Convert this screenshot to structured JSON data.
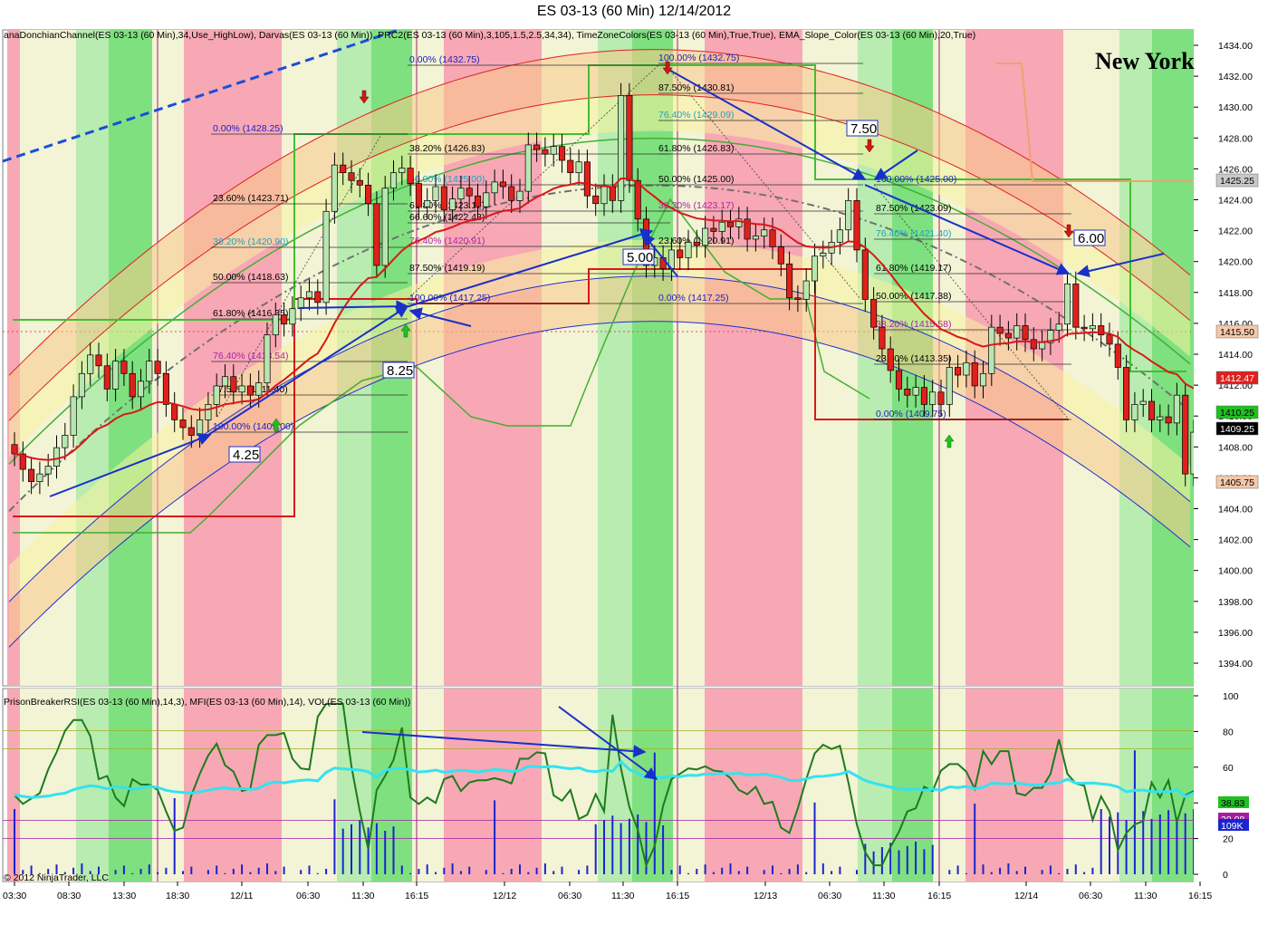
{
  "title": "ES 03-13 (60 Min)  12/14/2012",
  "location_label": "New York",
  "copyright": "© 2012 NinjaTrader, LLC",
  "price_indicators": "anaDonchianChannel(ES 03-13 (60 Min),34,Use_HighLow), Darvas(ES 03-13 (60 Min)), PRC2(ES 03-13 (60 Min),3,105,1.5,2.5,34,34), TimeZoneColors(ES 03-13 (60 Min),True,True), EMA_Slope_Color(ES 03-13 (60 Min),20,True)",
  "osc_indicators": "PrisonBreakerRSI(ES 03-13 (60 Min),14,3), MFI(ES 03-13 (60 Min),14), VOL(ES 03-13 (60 Min))",
  "colors": {
    "up": "#b8e6b0",
    "down": "#e0201c",
    "rsi": "#1e7a1e",
    "mfi": "#33e3f0",
    "vol": "#1a24d0",
    "arrow": "#1830c8",
    "ema": "#d81818",
    "zone_green": "#7fe07f",
    "zone_pink": "#f7a8b4",
    "zone_cream": "#f3f3d6"
  },
  "chart_data": {
    "type": "candlestick",
    "price_axis": {
      "range": [
        1392.5,
        1435.0
      ],
      "ticks": [
        "1434.00",
        "1432.00",
        "1430.00",
        "1428.00",
        "1426.00",
        "1424.00",
        "1422.00",
        "1420.00",
        "1418.00",
        "1416.00",
        "1414.00",
        "1412.00",
        "1410.00",
        "1408.00",
        "1406.00",
        "1404.00",
        "1402.00",
        "1400.00",
        "1398.00",
        "1396.00",
        "1394.00"
      ]
    },
    "time_axis": [
      "03:30",
      "08:30",
      "13:30",
      "18:30",
      "12/11",
      "06:30",
      "11:30",
      "16:15",
      "12/12",
      "06:30",
      "11:30",
      "16:15",
      "12/13",
      "06:30",
      "11:30",
      "16:15",
      "12/14",
      "06:30",
      "11:30",
      "16:15"
    ],
    "price_markers": [
      {
        "value": "1425.25",
        "kind": "gray"
      },
      {
        "value": "1415.50",
        "kind": "orange"
      },
      {
        "value": "1412.47",
        "kind": "red"
      },
      {
        "value": "1410.25",
        "kind": "green"
      },
      {
        "value": "1409.25",
        "kind": "black"
      },
      {
        "value": "1405.75",
        "kind": "orange"
      }
    ],
    "fib_sets": [
      {
        "levels": [
          "0.00% (1428.25)",
          "23.60% (1423.71)",
          "38.20% (1420.90)",
          "50.00% (1418.63)",
          "61.80% (1416.35)",
          "76.40% (1413.54)",
          "87.50% (1411.40)",
          "100.00% (1409.00)"
        ]
      },
      {
        "levels": [
          "0.00% (1432.75)",
          "38.20% (1426.83)",
          "50.00% (1425.00)",
          "61.80% (1423.17)",
          "66.60% (1422.43)",
          "76.40% (1420.91)",
          "87.50% (1419.19)",
          "100.00% (1417.25)"
        ]
      },
      {
        "levels": [
          "100.00% (1432.75)",
          "87.50% (1430.81)",
          "76.40% (1429.09)",
          "61.80% (1426.83)",
          "50.00% (1425.00)",
          "38.20% (1423.17)",
          "23.60% (1420.91)",
          "0.00% (1417.25)"
        ]
      },
      {
        "levels": [
          "100.00% (1425.00)",
          "87.50% (1423.09)",
          "76.40% (1421.40)",
          "61.80% (1419.17)",
          "50.00% (1417.38)",
          "38.20% (1415.58)",
          "23.60% (1413.35)",
          "0.00% (1409.75)"
        ]
      }
    ],
    "move_labels": [
      "4.25",
      "8.25",
      "5.00",
      "7.50",
      "6.00"
    ],
    "closes": [
      1407.8,
      1406.8,
      1406.0,
      1406.5,
      1407.0,
      1408.2,
      1409.0,
      1411.5,
      1413.0,
      1414.2,
      1413.5,
      1412.0,
      1413.8,
      1413.0,
      1411.5,
      1412.5,
      1413.8,
      1413.0,
      1411.0,
      1410.0,
      1409.5,
      1409.0,
      1410.0,
      1411.0,
      1412.2,
      1412.8,
      1411.8,
      1412.2,
      1411.6,
      1412.4,
      1415.5,
      1416.8,
      1416.2,
      1417.2,
      1417.9,
      1418.3,
      1417.6,
      1423.5,
      1426.5,
      1426.0,
      1425.5,
      1425.2,
      1424.0,
      1420.0,
      1425.0,
      1426.0,
      1426.3,
      1425.3,
      1423.8,
      1424.2,
      1425.1,
      1423.6,
      1424.3,
      1425.0,
      1424.5,
      1423.8,
      1424.7,
      1425.4,
      1425.1,
      1424.2,
      1424.8,
      1427.8,
      1427.5,
      1427.2,
      1427.7,
      1426.8,
      1426.0,
      1426.7,
      1424.5,
      1424.0,
      1425.1,
      1424.2,
      1431.0,
      1425.5,
      1423.0,
      1420.0,
      1420.5,
      1419.8,
      1421.0,
      1420.5,
      1421.5,
      1421.3,
      1422.4,
      1422.2,
      1422.8,
      1422.5,
      1423.0,
      1421.7,
      1421.9,
      1422.3,
      1421.2,
      1420.1,
      1417.9,
      1417.8,
      1419.0,
      1420.6,
      1420.8,
      1421.5,
      1422.3,
      1424.2,
      1421.0,
      1417.8,
      1416.0,
      1414.6,
      1413.2,
      1412.0,
      1411.6,
      1412.1,
      1411.0,
      1411.8,
      1411.0,
      1413.4,
      1412.9,
      1413.7,
      1412.2,
      1413.0,
      1416.0,
      1415.6,
      1415.3,
      1416.1,
      1415.2,
      1414.6,
      1415.0,
      1415.8,
      1416.2,
      1418.8,
      1416.0,
      1415.9,
      1416.1,
      1415.5,
      1414.9,
      1413.4,
      1410.0,
      1411.0,
      1411.2,
      1410.0,
      1410.2,
      1409.8,
      1411.6,
      1406.5,
      1409.2
    ],
    "oscillator_axis": {
      "range": [
        0,
        100
      ],
      "ticks": [
        "100",
        "80",
        "60",
        "40",
        "20",
        "0"
      ],
      "readouts": [
        "38.83",
        "30.08",
        "109K"
      ]
    }
  }
}
